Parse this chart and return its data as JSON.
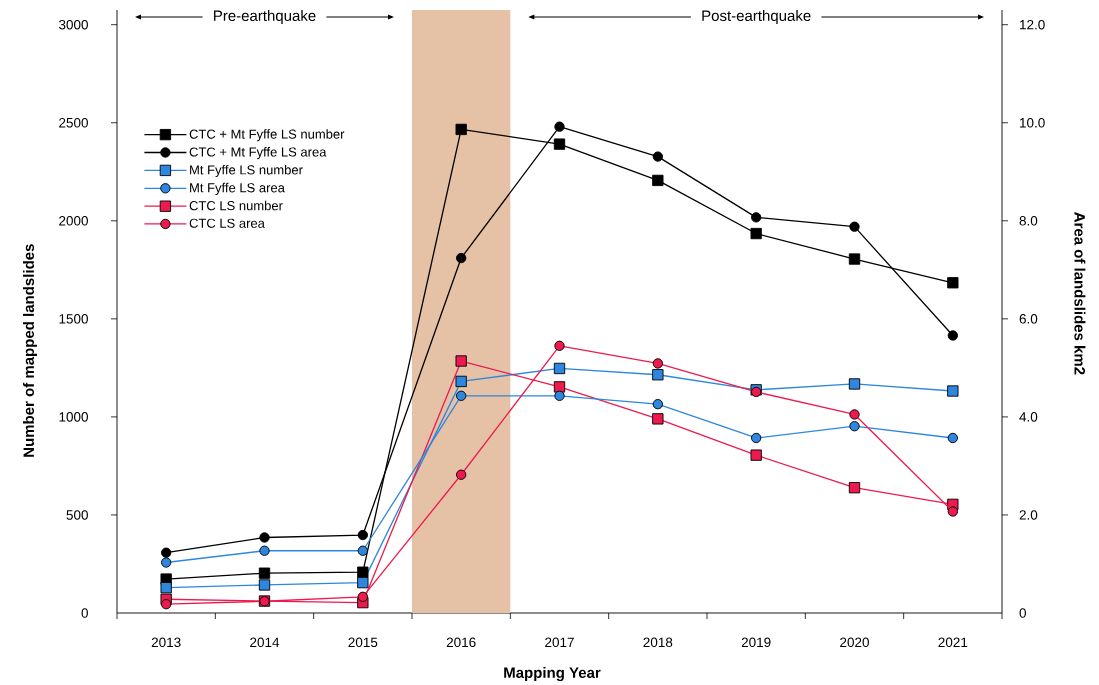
{
  "chart_data": {
    "type": "line",
    "xlabel": "Mapping Year",
    "ylabel": "Number of mapped landslides",
    "y2label": "Area of landslides km2",
    "annotations": [
      "Pre-earthquake",
      "Post-earthquake"
    ],
    "x": [
      2013,
      2014,
      2015,
      2016,
      2017,
      2018,
      2019,
      2020,
      2021
    ],
    "xlim": [
      2012.5,
      2021.5
    ],
    "xticks": [
      2013,
      2014,
      2015,
      2016,
      2017,
      2018,
      2019,
      2020,
      2021,
      {
        "value": 2012.5,
        "label": null
      },
      {
        "value": 2013.5,
        "label": null
      },
      {
        "value": 2014.5,
        "label": null
      },
      {
        "value": 2015.5,
        "label": null
      },
      {
        "value": 2016.5,
        "label": null
      },
      {
        "value": 2017.5,
        "label": null
      },
      {
        "value": 2018.5,
        "label": null
      },
      {
        "value": 2019.5,
        "label": null
      },
      {
        "value": 2020.5,
        "label": null
      },
      {
        "value": 2021.5,
        "label": null
      }
    ],
    "ylim": [
      0,
      3075
    ],
    "yticks": [
      0,
      500,
      1000,
      1500,
      2000,
      2500,
      3000
    ],
    "y2lim": [
      0,
      12.3
    ],
    "y2ticks": [
      0,
      {
        "value": 2,
        "label": "2.0"
      },
      {
        "value": 4,
        "label": "4.0"
      },
      {
        "value": 6,
        "label": "6.0"
      },
      {
        "value": 8,
        "label": "8.0"
      },
      {
        "value": 10,
        "label": "10.0"
      },
      {
        "value": 12,
        "label": "12.0"
      }
    ],
    "legend": "top left",
    "bands": [
      {
        "axis": "x",
        "from": 2015.5,
        "to": 2016.5,
        "color": "#e5c1a5"
      }
    ],
    "series": [
      {
        "name": "CTC + Mt Fyffe LS number",
        "color": "#000000",
        "marker": "square",
        "values": [
          173,
          203,
          208,
          2466,
          2391,
          2206,
          1935,
          1805,
          1684
        ]
      },
      {
        "name": "CTC + Mt Fyffe LS area",
        "color": "#000000",
        "marker": "circle",
        "axis": "y2",
        "values": [
          1.23,
          1.54,
          1.59,
          7.24,
          9.92,
          9.31,
          8.07,
          7.88,
          5.66
        ]
      },
      {
        "name": "Mt Fyffe LS number",
        "color": "#2e86de",
        "marker": "square",
        "values": [
          129,
          143,
          155,
          1181,
          1247,
          1215,
          1138,
          1168,
          1132
        ]
      },
      {
        "name": "Mt Fyffe LS area",
        "color": "#2e86de",
        "marker": "circle",
        "axis": "y2",
        "values": [
          1.03,
          1.27,
          1.27,
          4.43,
          4.43,
          4.26,
          3.57,
          3.81,
          3.57
        ]
      },
      {
        "name": "CTC LS number",
        "color": "#ec1a4e",
        "marker": "square",
        "values": [
          70,
          61,
          53,
          1285,
          1153,
          990,
          805,
          639,
          554
        ]
      },
      {
        "name": "CTC LS area",
        "color": "#ec1a4e",
        "marker": "circle",
        "axis": "y2",
        "values": [
          0.18,
          0.24,
          0.33,
          2.82,
          5.45,
          5.09,
          4.51,
          4.05,
          2.07
        ]
      }
    ]
  }
}
